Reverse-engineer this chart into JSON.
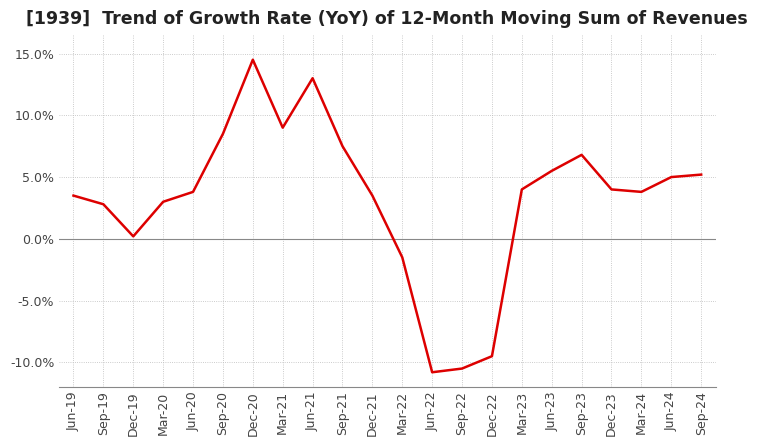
{
  "title": "[1939]  Trend of Growth Rate (YoY) of 12-Month Moving Sum of Revenues",
  "x_labels": [
    "Jun-19",
    "Sep-19",
    "Dec-19",
    "Mar-20",
    "Jun-20",
    "Sep-20",
    "Dec-20",
    "Mar-21",
    "Jun-21",
    "Sep-21",
    "Dec-21",
    "Mar-22",
    "Jun-22",
    "Sep-22",
    "Dec-22",
    "Mar-23",
    "Jun-23",
    "Sep-23",
    "Dec-23",
    "Mar-24",
    "Jun-24",
    "Sep-24"
  ],
  "y_values": [
    3.5,
    2.8,
    0.2,
    3.0,
    3.8,
    8.5,
    14.5,
    9.0,
    13.0,
    7.5,
    3.5,
    -1.5,
    -10.8,
    -10.5,
    -9.5,
    4.0,
    5.5,
    6.8,
    4.0,
    3.8,
    5.0,
    5.2
  ],
  "line_color": "#dd0000",
  "ylim": [
    -12.0,
    16.5
  ],
  "yticks": [
    -10.0,
    -5.0,
    0.0,
    5.0,
    10.0,
    15.0
  ],
  "background_color": "#ffffff",
  "grid_color": "#bbbbbb",
  "title_fontsize": 12.5,
  "tick_fontsize": 9
}
